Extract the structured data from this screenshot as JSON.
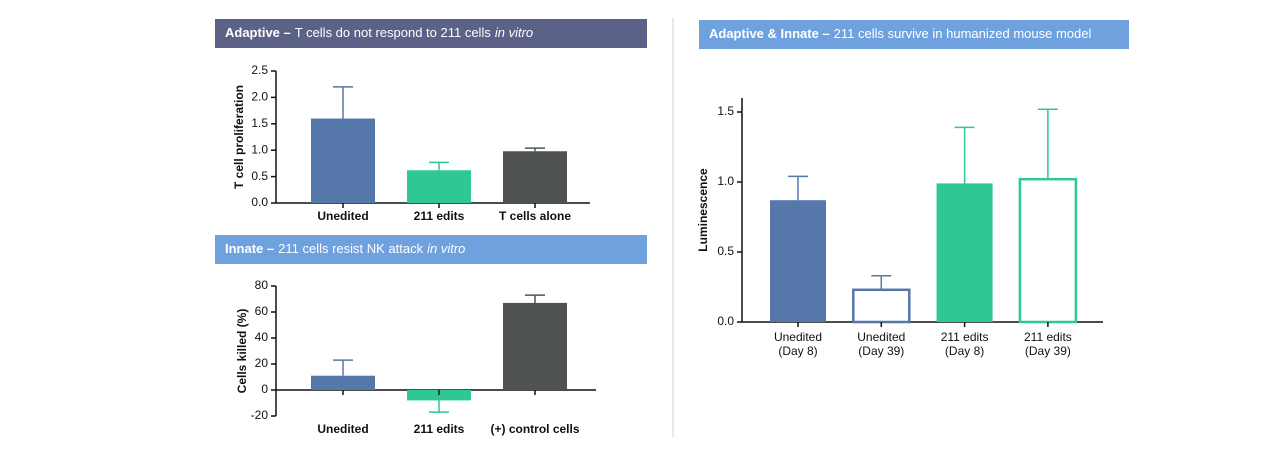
{
  "chart_data": [
    {
      "type": "bar",
      "title": {
        "bold": "Adaptive –",
        "text": "T cells do not respond to 211 cells",
        "italic": "in vitro"
      },
      "header_color": "#5b6187",
      "ylabel": "T cell proliferation",
      "categories": [
        [
          "Unedited"
        ],
        [
          "211 edits"
        ],
        [
          "T cells alone"
        ]
      ],
      "values": [
        1.6,
        0.62,
        0.98
      ],
      "errors": [
        0.6,
        0.15,
        0.06
      ],
      "colors": [
        "#5677a9",
        "#2ec795",
        "#4f5350"
      ],
      "filled": [
        true,
        true,
        true
      ],
      "ylim": [
        0,
        2.5
      ],
      "yticks": [
        {
          "value": 0,
          "label": "0.0"
        },
        0.5,
        {
          "value": 1,
          "label": "1.0"
        },
        1.5,
        {
          "value": 2,
          "label": "2.0"
        },
        2.5
      ]
    },
    {
      "type": "bar",
      "title": {
        "bold": "Innate –",
        "text": "211 cells resist NK attack",
        "italic": "in vitro"
      },
      "header_color": "#6fa1df",
      "ylabel": "Cells killed (%)",
      "categories": [
        [
          "Unedited"
        ],
        [
          "211 edits"
        ],
        [
          "(+) control cells"
        ]
      ],
      "values": [
        11,
        -8,
        67
      ],
      "errors": [
        12,
        9,
        6
      ],
      "colors": [
        "#5677a9",
        "#2ec795",
        "#4f5350"
      ],
      "filled": [
        true,
        true,
        true
      ],
      "ylim": [
        -20,
        80
      ],
      "yticks": [
        -20,
        0,
        20,
        40,
        60,
        80
      ]
    },
    {
      "type": "bar",
      "title": {
        "bold": "Adaptive & Innate –",
        "text": "211 cells survive in humanized mouse model"
      },
      "header_color": "#6fa1df",
      "ylabel": "Luminescence",
      "categories": [
        [
          "Unedited",
          "(Day 8)"
        ],
        [
          "Unedited",
          "(Day 39)"
        ],
        [
          "211 edits",
          "(Day 8)"
        ],
        [
          "211 edits",
          "(Day 39)"
        ]
      ],
      "values": [
        0.87,
        0.23,
        0.99,
        1.02
      ],
      "errors": [
        0.17,
        0.1,
        0.4,
        0.5
      ],
      "colors": [
        "#5677a9",
        "#5677a9",
        "#2ec795",
        "#2ec795"
      ],
      "filled": [
        true,
        false,
        true,
        false
      ],
      "ylim": [
        0,
        1.6
      ],
      "yticks": [
        {
          "value": 0,
          "label": "0.0"
        },
        0.5,
        {
          "value": 1,
          "label": "1.0"
        },
        1.5
      ]
    }
  ]
}
